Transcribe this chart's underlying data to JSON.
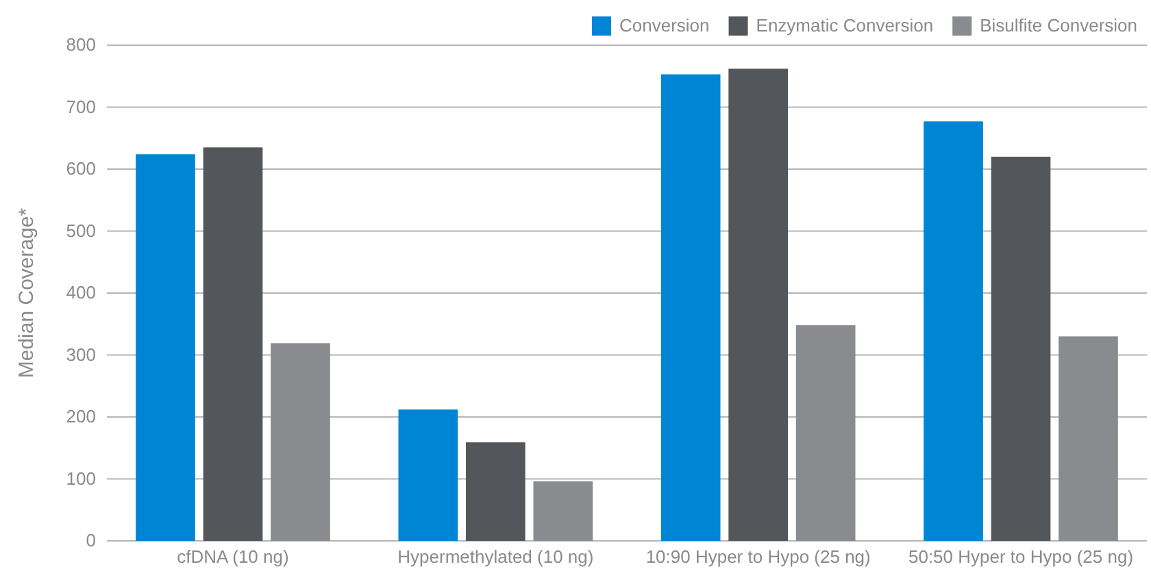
{
  "chart_data": {
    "type": "bar",
    "ylabel": "Median Coverage*",
    "categories": [
      "cfDNA (10 ng)",
      "Hypermethylated (10 ng)",
      "10:90 Hyper to Hypo (25 ng)",
      "50:50 Hyper to Hypo (25 ng)"
    ],
    "series": [
      {
        "name": "Conversion",
        "color": "#0085d4",
        "values": [
          624,
          212,
          753,
          677
        ]
      },
      {
        "name": "Enzymatic Conversion",
        "color": "#53565a",
        "values": [
          635,
          159,
          762,
          620
        ]
      },
      {
        "name": "Bisulfite Conversion",
        "color": "#898b8e",
        "values": [
          319,
          96,
          348,
          330
        ]
      }
    ],
    "ylim": [
      0,
      800
    ],
    "yticks": [
      0,
      100,
      200,
      300,
      400,
      500,
      600,
      700,
      800
    ],
    "grid": "y",
    "legend": "top right"
  }
}
